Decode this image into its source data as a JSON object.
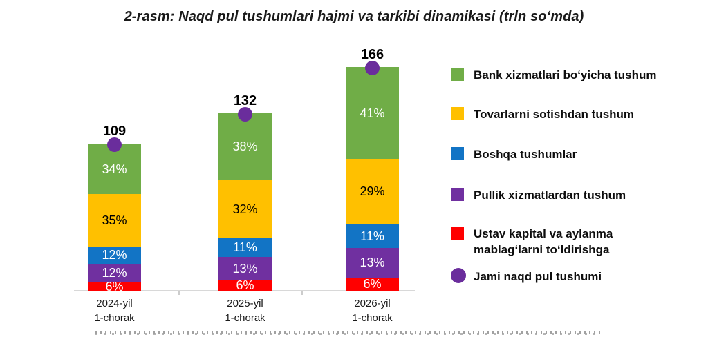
{
  "title": "2-rasm: Naqd pul tushumlari hajmi va tarkibi dinamikasi (trln soʻmda)",
  "colors": {
    "green": "#70AD47",
    "yellow": "#FFC000",
    "blue": "#1274C5",
    "purple": "#7030A0",
    "red": "#FF0000",
    "marker_purple": "#6A2D9C",
    "axis_line": "#D8D8D8",
    "text": "#1A1A1A"
  },
  "chart_data": {
    "type": "bar",
    "stacked": true,
    "title": "2-rasm: Naqd pul tushumlari hajmi va tarkibi dinamikasi (trln soʻmda)",
    "unit": "trln soʻm",
    "grid": false,
    "value_axis_visible": false,
    "legend_position": "right",
    "categories": [
      "2024-yil 1-chorak",
      "2025-yil 1-chorak",
      "2026-yil 1-chorak"
    ],
    "category_lines": [
      [
        "2024-yil",
        "1-chorak"
      ],
      [
        "2025-yil",
        "1-chorak"
      ],
      [
        "2026-yil",
        "1-chorak"
      ]
    ],
    "totals": [
      109,
      132,
      166
    ],
    "series": [
      {
        "name": "Bank xizmatlari boʻyicha tushum",
        "color": "#70AD47",
        "label_color": "#FFFFFF",
        "values_pct": [
          34,
          38,
          41
        ]
      },
      {
        "name": "Tovarlarni sotishdan tushum",
        "color": "#FFC000",
        "label_color": "#000000",
        "values_pct": [
          35,
          32,
          29
        ]
      },
      {
        "name": "Boshqa tushumlar",
        "color": "#1274C5",
        "label_color": "#FFFFFF",
        "values_pct": [
          12,
          11,
          11
        ]
      },
      {
        "name": "Pullik xizmatlardan tushum",
        "color": "#7030A0",
        "label_color": "#FFFFFF",
        "values_pct": [
          12,
          13,
          13
        ]
      },
      {
        "name": "Ustav kapital va aylanma mablagʻlarni toʻldirishga",
        "color": "#FF0000",
        "label_color": "#FFFFFF",
        "values_pct": [
          6,
          6,
          6
        ]
      }
    ],
    "marker": {
      "label": "Jami naqd pul tushumi",
      "values": [
        109,
        132,
        166
      ],
      "color": "#6A2D9C"
    }
  },
  "legend": {
    "items": [
      {
        "shape": "square",
        "color": "#70AD47",
        "lines": [
          "Bank xizmatlari boʻyicha tushum"
        ]
      },
      {
        "shape": "square",
        "color": "#FFC000",
        "lines": [
          "Tovarlarni sotishdan tushum"
        ]
      },
      {
        "shape": "square",
        "color": "#1274C5",
        "lines": [
          "Boshqa tushumlar"
        ]
      },
      {
        "shape": "square",
        "color": "#7030A0",
        "lines": [
          "Pullik xizmatlardan tushum"
        ]
      },
      {
        "shape": "square",
        "color": "#FF0000",
        "lines": [
          "Ustav kapital va aylanma",
          "mablagʻlarni toʻldirishga"
        ]
      },
      {
        "shape": "circle",
        "color": "#6A2D9C",
        "lines": [
          "Jami naqd pul tushumi"
        ]
      }
    ]
  }
}
